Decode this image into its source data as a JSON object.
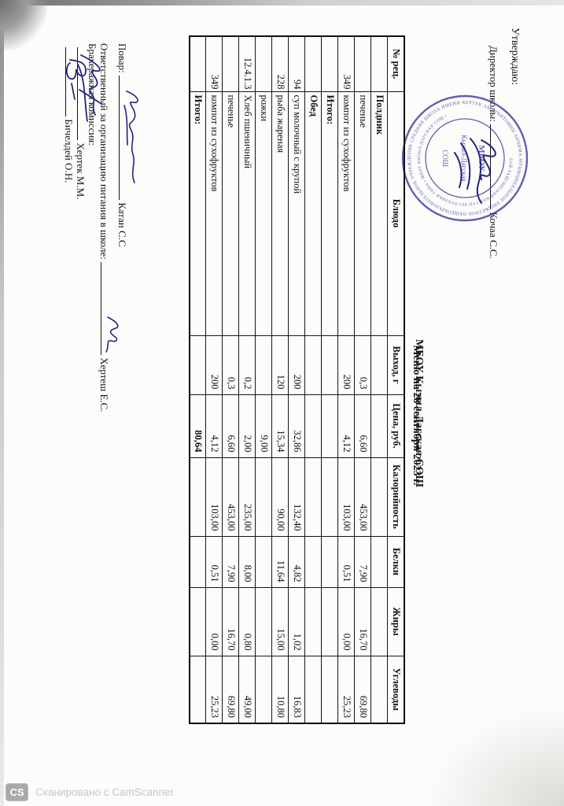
{
  "approval": {
    "line1": "Утверждаю:",
    "line2_prefix": "Директор школы:",
    "director_name": "Кочаа С.С."
  },
  "stamp": {
    "ring_text_outer": "МУНИЦИПАЛЬНОЕ БЮДЖЕТНОЕ ОБЩЕОБРАЗОВАТЕЛЬНОЕ УЧРЕЖДЕНИЕ СРЕДНЯЯ ШКОЛА ИМЕНИ ХЕРТЕК АМЫРБИТОВНЫ АНЧИМАА-ТОКА • ",
    "ring_text_inner": "БАЙ-ТАЙГИНСКИЙ КОЖУУН РЕСПУБЛИКИ ТЫВА • МБОУ КЫЗЫЛ-ДАГСКАЯ СОШ • ",
    "center_line1": "МБОУ",
    "center_line2": "Кызыл-Дагская",
    "center_line3": "СОШ",
    "ink_color": "#3d3f9f"
  },
  "title": {
    "line1": "МБОУ Кызыл-Дагская СОШ",
    "line2": "Меню на 28 сентября 2023 г."
  },
  "table": {
    "columns": [
      "№ рец.",
      "Блюдо",
      "Выход, г",
      "Цена, руб.",
      "Калорийность",
      "Белки",
      "Жиры",
      "Углеводы"
    ],
    "rows": [
      {
        "bold": true,
        "cells": [
          "",
          "Полдник",
          "",
          "",
          "",
          "",
          "",
          ""
        ]
      },
      {
        "bold": false,
        "cells": [
          "",
          "печенье",
          "0,3",
          "6,60",
          "453,00",
          "7,90",
          "16,70",
          "69,80"
        ]
      },
      {
        "bold": false,
        "cells": [
          "349",
          "компот из сухофруктов",
          "200",
          "4,12",
          "103,00",
          "0,51",
          "0,00",
          "25,23"
        ]
      },
      {
        "bold": true,
        "cells": [
          "",
          "Итого:",
          "",
          "",
          "",
          "",
          "",
          ""
        ]
      },
      {
        "bold": true,
        "cells": [
          "",
          "Обед",
          "",
          "",
          "",
          "",
          "",
          ""
        ]
      },
      {
        "bold": false,
        "cells": [
          "94",
          "суп молочный с крупой",
          "200",
          "32,86",
          "132,40",
          "4,82",
          "1,02",
          "16,83"
        ]
      },
      {
        "bold": false,
        "cells": [
          "228",
          "рыба жареная",
          "120",
          "15,34",
          "90,00",
          "11,64",
          "15,00",
          "10,80"
        ]
      },
      {
        "bold": false,
        "cells": [
          "",
          "рожки",
          "",
          "9,00",
          "",
          "",
          "",
          ""
        ]
      },
      {
        "bold": false,
        "cells": [
          "12.4.1.3",
          "Хлеб пшеничный",
          "0,2",
          "2,00",
          "235,00",
          "8,00",
          "0,80",
          "49,00"
        ]
      },
      {
        "bold": false,
        "cells": [
          "",
          "печенье",
          "0,3",
          "6,60",
          "453,00",
          "7,90",
          "16,70",
          "69,80"
        ]
      },
      {
        "bold": false,
        "cells": [
          "349",
          "компот из сухофруктов",
          "200",
          "4,12",
          "103,00",
          "0,51",
          "0,00",
          "25,23"
        ]
      },
      {
        "bold": true,
        "cells": [
          "",
          "Итого:",
          "",
          "80,64",
          "",
          "",
          "",
          ""
        ]
      }
    ]
  },
  "signatures": {
    "cook_label": "Повар:",
    "cook_name": "Катан С.С",
    "responsible_label": "Ответственный за организацию питания в школе:",
    "responsible_name": "Хертеш Е.С.",
    "commission_label": "Бракеражная комиссия:",
    "member1_name": "Хертек М.М.",
    "member2_name": "Бичелдей О.Н.",
    "ink_color": "#23237d"
  },
  "scanner_footer": {
    "badge": "CS",
    "text": "Сканировано с CamScanner",
    "gray": "#c6c6c4"
  }
}
